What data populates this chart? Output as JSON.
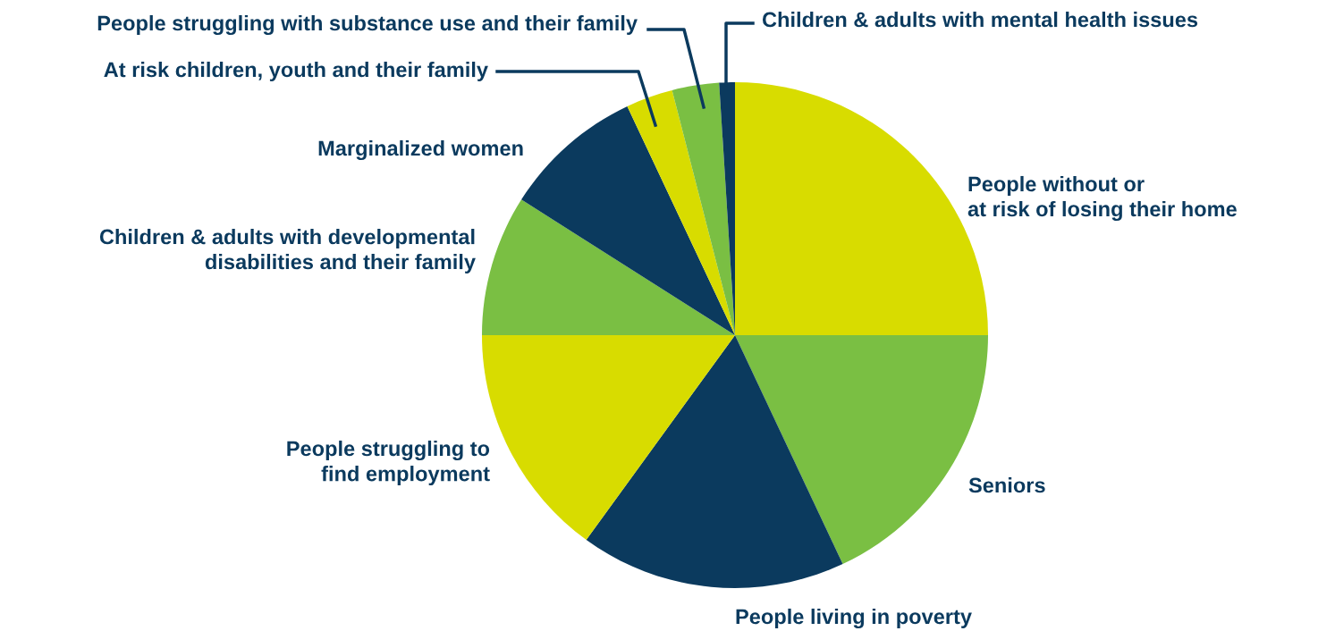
{
  "chart_data": {
    "type": "pie",
    "categories": [
      "People without or\nat risk of losing their home",
      "Seniors",
      "People living in poverty",
      "People struggling to\nfind employment",
      "Children & adults with developmental\ndisabilities and their family",
      "Marginalized women",
      "At risk children, youth and their family",
      "People struggling with substance use and their family",
      "Children & adults with mental health issues"
    ],
    "values": [
      25,
      18,
      17,
      15,
      9,
      9,
      3,
      3,
      1
    ],
    "colors": [
      "#d8dc00",
      "#7abf43",
      "#0b3a5e",
      "#d8dc00",
      "#7abf43",
      "#0b3a5e",
      "#d8dc00",
      "#7abf43",
      "#0b3a5e"
    ],
    "legend": false
  }
}
